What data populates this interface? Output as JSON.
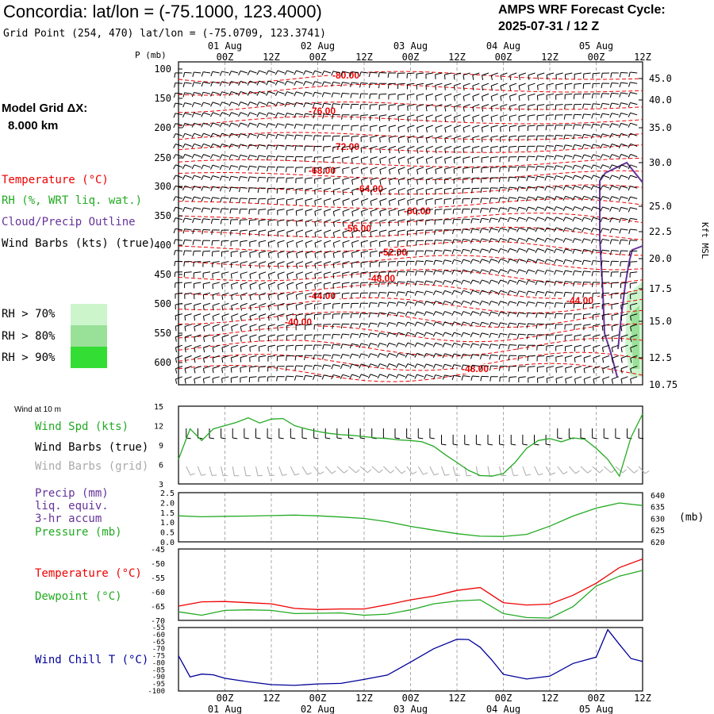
{
  "header": {
    "title": "Concordia:  lat/lon = (-75.1000, 123.4000)",
    "subtitle": "Grid Point (254, 470) lat/lon = (-75.0709, 123.3741)",
    "cycle_title": "AMPS WRF Forecast Cycle:",
    "cycle_value": "2025-07-31 / 12  Z"
  },
  "left_labels": {
    "model_grid": "Model Grid ΔX:",
    "model_grid_value": "8.000 km",
    "temperature": "Temperature (°C)",
    "rh": "RH (%, WRT liq. wat.)",
    "cloud": "Cloud/Precip Outline",
    "wind_barbs": "Wind Barbs (kts) (true)",
    "rh70": "RH > 70%",
    "rh80": "RH > 80%",
    "rh90": "RH > 90%",
    "wind10m": "Wind at 10 m",
    "wind_spd": "Wind Spd (kts)",
    "wind_barbs_true": "Wind Barbs (true)",
    "wind_barbs_grid": "Wind Barbs (grid)",
    "precip": "Precip (mm)",
    "precip2": "liq. equiv.",
    "precip3": "3-hr accum",
    "pressure": "Pressure (mb)",
    "temp2": "Temperature (°C)",
    "dewpoint": "Dewpoint (°C)",
    "windchill": "Wind Chill T (°C)",
    "pres_unit": "(mb)",
    "kft": "Kft MSL",
    "p_mb": "P (mb)"
  },
  "colors": {
    "temperature": "#ee0000",
    "rh": "#22aa22",
    "cloud": "#663399",
    "windchill": "#000099",
    "rh70": "#ccf5cc",
    "rh80": "#99e099",
    "rh90": "#33dd33",
    "gridbarb": "#aaaaaa"
  },
  "time_axis": {
    "top_dates": [
      "01 Aug",
      "02 Aug",
      "03 Aug",
      "04 Aug",
      "05 Aug"
    ],
    "bottom_dates": [
      "01 Aug",
      "02 Aug",
      "03 Aug",
      "04 Aug",
      "05 Aug"
    ],
    "hours": [
      "00Z",
      "12Z",
      "00Z",
      "12Z",
      "00Z",
      "12Z",
      "00Z",
      "12Z",
      "00Z",
      "12Z"
    ]
  },
  "chart_data": [
    {
      "type": "line",
      "name": "upper-air cross section",
      "x_range_hours": [
        0,
        120
      ],
      "pressure_ticks": [
        "100",
        "150",
        "200",
        "250",
        "300",
        "350",
        "400",
        "450",
        "500",
        "550",
        "600"
      ],
      "height_ticks_kft": [
        "45.0",
        "40.0",
        "35.0",
        "30.0",
        "25.0",
        "22.5",
        "20.0",
        "17.5",
        "15.0",
        "12.5",
        "10.75"
      ],
      "temperature_labels": [
        "-80.00",
        "-76.00",
        "-72.00",
        "-68.00",
        "-64.00",
        "-60.00",
        "-56.00",
        "-52.00",
        "-48.00",
        "-44.00",
        "-40.00",
        "-44.00",
        "-48.00"
      ]
    },
    {
      "type": "line",
      "name": "wind at 10 m",
      "y_ticks": [
        "15",
        "12",
        "9",
        "6",
        "3"
      ],
      "ylim": [
        3,
        15
      ],
      "x_hours": [
        0,
        3,
        6,
        9,
        12,
        15,
        18,
        21,
        24,
        27,
        30,
        33,
        36,
        39,
        42,
        45,
        48,
        51,
        54,
        57,
        60,
        63,
        66,
        69,
        72,
        75,
        78,
        81,
        84,
        87,
        90,
        93,
        96,
        99,
        102,
        105,
        108,
        111,
        114,
        117,
        120
      ],
      "wind_speed_kts": [
        6.8,
        11.5,
        9.7,
        11.5,
        12.0,
        12.5,
        13.2,
        12.4,
        13.0,
        13.1,
        12.0,
        11.5,
        11.1,
        10.8,
        10.6,
        10.5,
        10.3,
        10.1,
        10.0,
        9.8,
        9.7,
        9.5,
        8.8,
        7.5,
        6.3,
        5.1,
        4.3,
        4.2,
        4.6,
        6.3,
        8.5,
        9.7,
        10.0,
        9.5,
        10.1,
        9.9,
        8.5,
        6.8,
        4.2,
        10.2,
        13.8
      ]
    },
    {
      "type": "line",
      "name": "pressure",
      "y_ticks_left": [
        "2.5",
        "2.0",
        "1.5",
        "1.0",
        "0.5",
        "0.0"
      ],
      "y_ticks_right": [
        "640",
        "635",
        "630",
        "625",
        "620"
      ],
      "ylim": [
        620,
        641
      ],
      "x_hours": [
        0,
        6,
        12,
        18,
        24,
        30,
        36,
        42,
        48,
        54,
        60,
        66,
        72,
        78,
        84,
        90,
        96,
        102,
        108,
        114,
        120
      ],
      "pressure_mb": [
        631.1,
        630.7,
        630.9,
        631.0,
        631.2,
        631.4,
        631.1,
        630.6,
        630.0,
        628.6,
        626.6,
        625.0,
        623.5,
        622.4,
        622.3,
        623.2,
        626.7,
        631.0,
        634.4,
        636.6,
        635.5
      ],
      "precip_mm": [
        0,
        0,
        0,
        0,
        0,
        0,
        0,
        0,
        0,
        0,
        0,
        0,
        0,
        0,
        0,
        0,
        0,
        0,
        0,
        0,
        0
      ]
    },
    {
      "type": "line",
      "name": "temperature and dewpoint",
      "y_ticks": [
        "-45",
        "-50",
        "-55",
        "-60",
        "-65",
        "-70"
      ],
      "ylim": [
        -70,
        -45
      ],
      "x_hours": [
        0,
        6,
        12,
        18,
        24,
        30,
        36,
        42,
        48,
        54,
        60,
        66,
        72,
        78,
        84,
        90,
        96,
        102,
        108,
        114,
        120
      ],
      "temperature_c": [
        -65,
        -63.5,
        -63.4,
        -63.8,
        -64.2,
        -65.8,
        -66.2,
        -66.0,
        -66.0,
        -64.5,
        -62.8,
        -61.5,
        -59.5,
        -58.5,
        -63.8,
        -64.6,
        -64.3,
        -61.2,
        -57.0,
        -51.5,
        -48.5
      ],
      "dewpoint_c": [
        -67,
        -68.2,
        -66.5,
        -66.3,
        -66.5,
        -67.6,
        -67.5,
        -67.4,
        -68.2,
        -67.8,
        -66.3,
        -64.2,
        -63.2,
        -62.8,
        -67.6,
        -69.0,
        -69.2,
        -65.2,
        -58.0,
        -54.5,
        -52.5
      ]
    },
    {
      "type": "line",
      "name": "wind chill",
      "y_ticks": [
        "-55",
        "-60",
        "-65",
        "-70",
        "-75",
        "-80",
        "-85",
        "-90",
        "-95",
        "-100"
      ],
      "ylim": [
        -100,
        -55
      ],
      "x_hours": [
        0,
        3,
        6,
        9,
        12,
        18,
        24,
        30,
        36,
        42,
        48,
        54,
        60,
        66,
        72,
        75,
        78,
        81,
        84,
        90,
        96,
        102,
        108,
        111,
        114,
        117,
        120
      ],
      "windchill_c": [
        -75,
        -90,
        -88,
        -88.5,
        -91,
        -93.5,
        -95.5,
        -96,
        -95,
        -94.6,
        -91.8,
        -88.7,
        -79.5,
        -70,
        -63.3,
        -63.5,
        -69,
        -78,
        -88.2,
        -91.5,
        -89.5,
        -80.5,
        -76,
        -56.5,
        -67,
        -77,
        -79
      ]
    }
  ]
}
